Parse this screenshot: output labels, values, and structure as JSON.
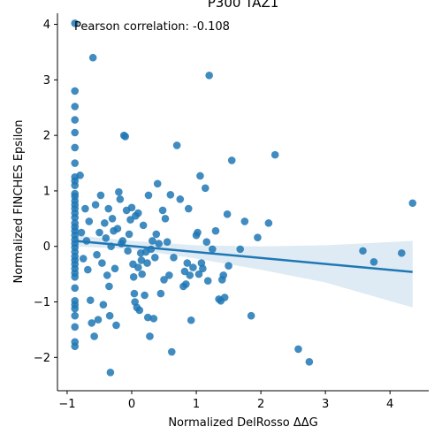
{
  "chart_data": {
    "type": "scatter",
    "title": "P300 TAZ1",
    "xlabel": "Normalized DelRosso ΔΔG",
    "ylabel": "Normalized FINCHES Epsilon",
    "xlim": [
      -1.15,
      4.6
    ],
    "ylim": [
      -2.6,
      4.2
    ],
    "xticks": [
      -1,
      0,
      1,
      2,
      3,
      4
    ],
    "yticks": [
      -2,
      -1,
      0,
      1,
      2,
      3,
      4
    ],
    "xtick_labels": [
      "−1",
      "0",
      "1",
      "2",
      "3",
      "4"
    ],
    "ytick_labels": [
      "−2",
      "−1",
      "0",
      "1",
      "2",
      "3",
      "4"
    ],
    "annotation": "Pearson correlation: -0.108",
    "grid": false,
    "point_color": "#1f77b4",
    "fit_line": {
      "x": [
        -0.88,
        4.35
      ],
      "y": [
        0.1,
        -0.46
      ]
    },
    "confidence_band": {
      "x": [
        -0.88,
        0.0,
        1.0,
        2.0,
        3.0,
        4.35
      ],
      "upper": [
        0.2,
        0.1,
        0.02,
        0.0,
        0.02,
        0.1
      ],
      "lower": [
        0.0,
        -0.05,
        -0.22,
        -0.42,
        -0.65,
        -1.1
      ]
    },
    "points": [
      [
        -0.88,
        4.02
      ],
      [
        -0.88,
        2.8
      ],
      [
        -0.88,
        2.52
      ],
      [
        -0.88,
        2.28
      ],
      [
        -0.88,
        2.05
      ],
      [
        -0.88,
        1.78
      ],
      [
        -0.88,
        1.5
      ],
      [
        -0.88,
        1.25
      ],
      [
        -0.88,
        1.18
      ],
      [
        -0.88,
        1.1
      ],
      [
        -0.88,
        0.95
      ],
      [
        -0.88,
        0.9
      ],
      [
        -0.88,
        0.82
      ],
      [
        -0.88,
        0.75
      ],
      [
        -0.88,
        0.68
      ],
      [
        -0.88,
        0.6
      ],
      [
        -0.88,
        0.52
      ],
      [
        -0.88,
        0.42
      ],
      [
        -0.88,
        0.35
      ],
      [
        -0.88,
        0.28
      ],
      [
        -0.88,
        0.2
      ],
      [
        -0.88,
        0.12
      ],
      [
        -0.88,
        0.05
      ],
      [
        -0.88,
        -0.02
      ],
      [
        -0.88,
        -0.1
      ],
      [
        -0.88,
        -0.18
      ],
      [
        -0.88,
        -0.25
      ],
      [
        -0.88,
        -0.32
      ],
      [
        -0.88,
        -0.4
      ],
      [
        -0.88,
        -0.48
      ],
      [
        -0.88,
        -0.55
      ],
      [
        -0.88,
        -0.75
      ],
      [
        -0.88,
        -0.98
      ],
      [
        -0.88,
        -1.05
      ],
      [
        -0.88,
        -1.12
      ],
      [
        -0.88,
        -1.25
      ],
      [
        -0.88,
        -1.45
      ],
      [
        -0.88,
        -1.72
      ],
      [
        -0.88,
        -1.8
      ],
      [
        -0.8,
        1.28
      ],
      [
        -0.78,
        0.25
      ],
      [
        -0.75,
        -0.22
      ],
      [
        -0.72,
        0.68
      ],
      [
        -0.7,
        0.1
      ],
      [
        -0.68,
        -0.42
      ],
      [
        -0.66,
        0.45
      ],
      [
        -0.64,
        -0.97
      ],
      [
        -0.62,
        -1.38
      ],
      [
        -0.6,
        3.4
      ],
      [
        -0.58,
        -1.62
      ],
      [
        -0.56,
        0.75
      ],
      [
        -0.54,
        -0.15
      ],
      [
        -0.52,
        -1.32
      ],
      [
        -0.5,
        0.25
      ],
      [
        -0.48,
        0.92
      ],
      [
        -0.46,
        -0.3
      ],
      [
        -0.44,
        -1.05
      ],
      [
        -0.42,
        0.42
      ],
      [
        -0.4,
        0.15
      ],
      [
        -0.38,
        -0.52
      ],
      [
        -0.36,
        0.68
      ],
      [
        -0.35,
        -0.72
      ],
      [
        -0.34,
        -1.25
      ],
      [
        -0.33,
        -2.27
      ],
      [
        -0.32,
        0.0
      ],
      [
        -0.3,
        0.5
      ],
      [
        -0.28,
        0.28
      ],
      [
        -0.26,
        -0.4
      ],
      [
        -0.24,
        -1.42
      ],
      [
        -0.22,
        0.32
      ],
      [
        -0.2,
        0.98
      ],
      [
        -0.18,
        0.85
      ],
      [
        -0.16,
        0.05
      ],
      [
        -0.14,
        0.1
      ],
      [
        -0.12,
        2.0
      ],
      [
        -0.1,
        1.98
      ],
      [
        -0.08,
        0.65
      ],
      [
        -0.06,
        -0.08
      ],
      [
        -0.04,
        0.22
      ],
      [
        -0.02,
        0.48
      ],
      [
        0.0,
        0.7
      ],
      [
        0.02,
        -0.32
      ],
      [
        0.03,
        -0.55
      ],
      [
        0.04,
        -0.85
      ],
      [
        0.05,
        -1.0
      ],
      [
        0.06,
        0.55
      ],
      [
        0.08,
        -1.1
      ],
      [
        0.1,
        0.6
      ],
      [
        0.1,
        -0.38
      ],
      [
        0.12,
        -1.15
      ],
      [
        0.14,
        -0.12
      ],
      [
        0.15,
        -0.25
      ],
      [
        0.16,
        -0.5
      ],
      [
        0.18,
        0.38
      ],
      [
        0.2,
        -0.88
      ],
      [
        0.22,
        -0.1
      ],
      [
        0.24,
        -0.3
      ],
      [
        0.25,
        -1.28
      ],
      [
        0.26,
        0.92
      ],
      [
        0.28,
        -1.62
      ],
      [
        0.3,
        -0.05
      ],
      [
        0.32,
        0.1
      ],
      [
        0.34,
        -1.3
      ],
      [
        0.36,
        -0.2
      ],
      [
        0.38,
        0.22
      ],
      [
        0.4,
        1.13
      ],
      [
        0.42,
        0.05
      ],
      [
        0.45,
        -0.85
      ],
      [
        0.48,
        0.65
      ],
      [
        0.5,
        -0.6
      ],
      [
        0.52,
        0.5
      ],
      [
        0.55,
        0.08
      ],
      [
        0.58,
        -0.52
      ],
      [
        0.6,
        0.93
      ],
      [
        0.62,
        -1.9
      ],
      [
        0.65,
        -0.2
      ],
      [
        0.7,
        1.82
      ],
      [
        0.75,
        0.85
      ],
      [
        0.8,
        -0.72
      ],
      [
        0.82,
        -0.45
      ],
      [
        0.84,
        -0.68
      ],
      [
        0.86,
        -0.3
      ],
      [
        0.88,
        0.68
      ],
      [
        0.9,
        -0.52
      ],
      [
        0.92,
        -1.33
      ],
      [
        0.95,
        -0.38
      ],
      [
        1.0,
        0.2
      ],
      [
        1.02,
        0.25
      ],
      [
        1.04,
        -0.5
      ],
      [
        1.06,
        1.27
      ],
      [
        1.08,
        -0.3
      ],
      [
        1.1,
        -0.4
      ],
      [
        1.14,
        1.05
      ],
      [
        1.16,
        0.08
      ],
      [
        1.18,
        -0.62
      ],
      [
        1.2,
        3.08
      ],
      [
        1.25,
        -0.05
      ],
      [
        1.3,
        0.28
      ],
      [
        1.35,
        -0.95
      ],
      [
        1.38,
        -0.98
      ],
      [
        1.4,
        -0.6
      ],
      [
        1.42,
        -0.52
      ],
      [
        1.44,
        -0.92
      ],
      [
        1.48,
        0.58
      ],
      [
        1.5,
        -0.35
      ],
      [
        1.55,
        1.55
      ],
      [
        1.68,
        -0.05
      ],
      [
        1.75,
        0.45
      ],
      [
        1.85,
        -1.25
      ],
      [
        1.95,
        0.16
      ],
      [
        2.12,
        0.42
      ],
      [
        2.22,
        1.65
      ],
      [
        2.58,
        -1.85
      ],
      [
        2.75,
        -2.08
      ],
      [
        3.58,
        -0.08
      ],
      [
        3.75,
        -0.28
      ],
      [
        4.18,
        -0.12
      ],
      [
        4.35,
        0.78
      ]
    ]
  }
}
